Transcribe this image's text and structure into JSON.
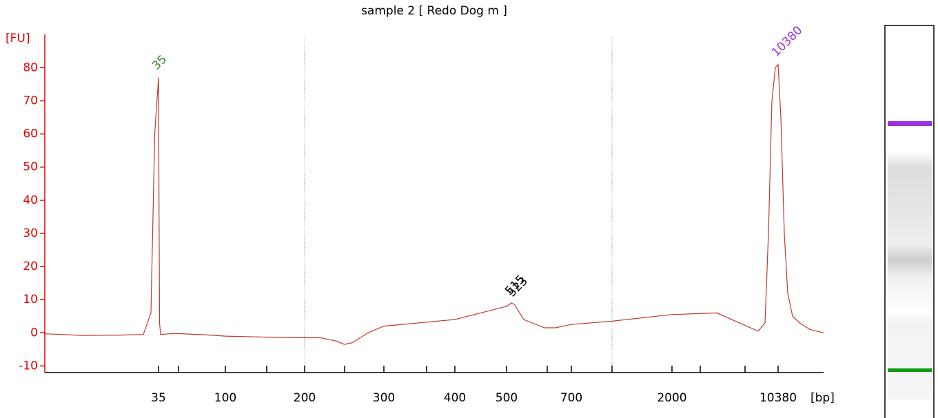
{
  "chart_data": {
    "type": "line",
    "title": "sample 2  [ Redo Dog m ]",
    "ylabel": "[FU]",
    "xlabel": "[bp]",
    "axis_color": "#e00000",
    "color": "#c0392b",
    "ylim": [
      -12,
      89
    ],
    "yticks": [
      -10,
      0,
      10,
      20,
      30,
      40,
      50,
      60,
      70,
      80
    ],
    "xlim": [
      20,
      15000
    ],
    "xticks": [
      35,
      100,
      200,
      300,
      400,
      500,
      700,
      2000,
      10380
    ],
    "x": [
      20,
      25,
      30,
      33,
      34,
      34.5,
      35,
      35.5,
      36,
      37,
      50,
      80,
      100,
      150,
      200,
      220,
      240,
      250,
      260,
      280,
      300,
      350,
      400,
      450,
      500,
      515,
      525,
      553,
      617,
      650,
      700,
      1225,
      2000,
      5537,
      8802,
      9346,
      9618,
      9890,
      10162,
      10380,
      10660,
      11010,
      11360,
      11850,
      12550,
      13600,
      15000
    ],
    "values": [
      -0.3,
      -0.8,
      -0.7,
      -0.5,
      6,
      60,
      77,
      40,
      3,
      -0.5,
      -0.2,
      -0.6,
      -1,
      -1.3,
      -1.5,
      -1.5,
      -2.5,
      -3.5,
      -3,
      0,
      2,
      3,
      4,
      6,
      8,
      9,
      8.5,
      4,
      1.5,
      1.5,
      2.5,
      3.5,
      5.5,
      6,
      0.5,
      3,
      30,
      70,
      80,
      81,
      65,
      30,
      12,
      5,
      3,
      1,
      0
    ],
    "annotations": [
      {
        "text": "35",
        "x": 35,
        "y": 77,
        "color": "#2e8b2e"
      },
      {
        "text": "515",
        "x": 515,
        "y": 9,
        "color": "#000000"
      },
      {
        "text": "523",
        "x": 523,
        "y": 8.5,
        "color": "#000000"
      },
      {
        "text": "10380",
        "x": 10380,
        "y": 81,
        "color": "#9b30e0"
      }
    ]
  }
}
